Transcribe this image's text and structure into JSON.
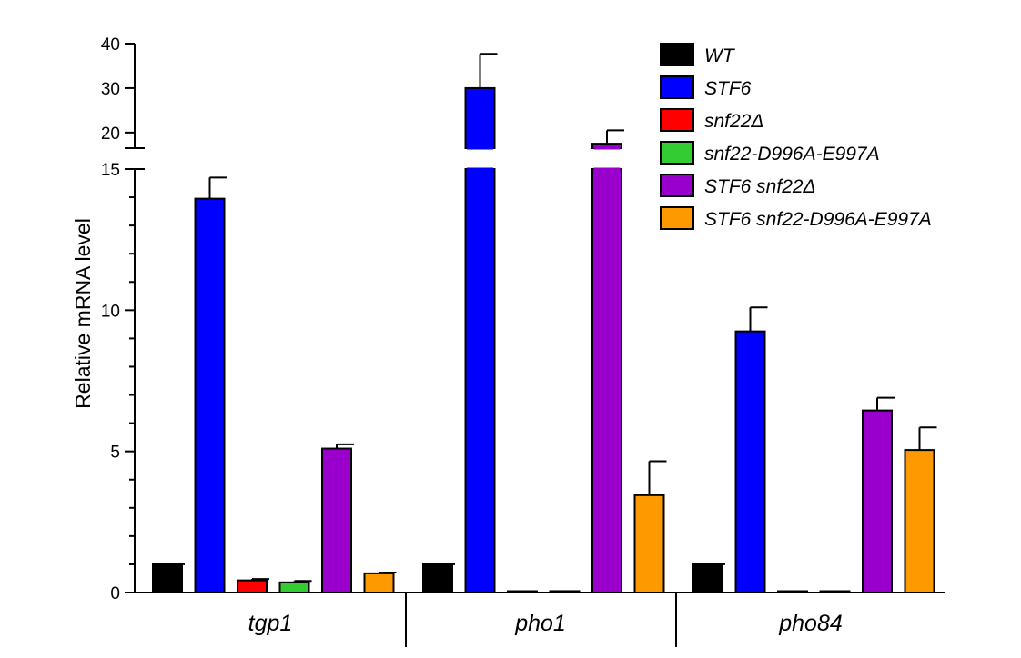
{
  "chart_data": {
    "type": "bar",
    "title": "",
    "xlabel": "",
    "ylabel": "Relative mRNA level",
    "categories": [
      "tgp1",
      "pho1",
      "pho84"
    ],
    "y_axis": {
      "broken": true,
      "lower_segment": {
        "range": [
          0,
          15
        ],
        "ticks": [
          0,
          5,
          10,
          15
        ]
      },
      "upper_segment": {
        "range": [
          16.5,
          40
        ],
        "ticks": [
          20,
          30,
          40
        ]
      }
    },
    "grid": false,
    "legend_position": "top-right",
    "series": [
      {
        "name": "WT",
        "color": "#000000",
        "values": [
          1.0,
          1.0,
          1.0
        ],
        "errors": [
          0,
          0,
          0
        ]
      },
      {
        "name": "STF6",
        "color": "#0000FF",
        "values": [
          13.95,
          30.0,
          9.25
        ],
        "errors": [
          0.75,
          7.7,
          0.85
        ]
      },
      {
        "name": "snf22Δ",
        "color": "#FF0000",
        "values": [
          0.43,
          0.04,
          0.01
        ],
        "errors": [
          0.05,
          0.02,
          0.01
        ]
      },
      {
        "name": "snf22-D996A-E997A",
        "color": "#33CC33",
        "values": [
          0.36,
          0.05,
          0.03
        ],
        "errors": [
          0.05,
          0.02,
          0.01
        ]
      },
      {
        "name": "STF6 snf22Δ",
        "color": "#9900CC",
        "values": [
          5.1,
          17.5,
          6.45
        ],
        "errors": [
          0.15,
          3.0,
          0.45
        ]
      },
      {
        "name": "STF6 snf22-D996A-E997A",
        "color": "#FF9900",
        "values": [
          0.68,
          3.45,
          5.05
        ],
        "errors": [
          0.03,
          1.2,
          0.8
        ]
      }
    ]
  }
}
